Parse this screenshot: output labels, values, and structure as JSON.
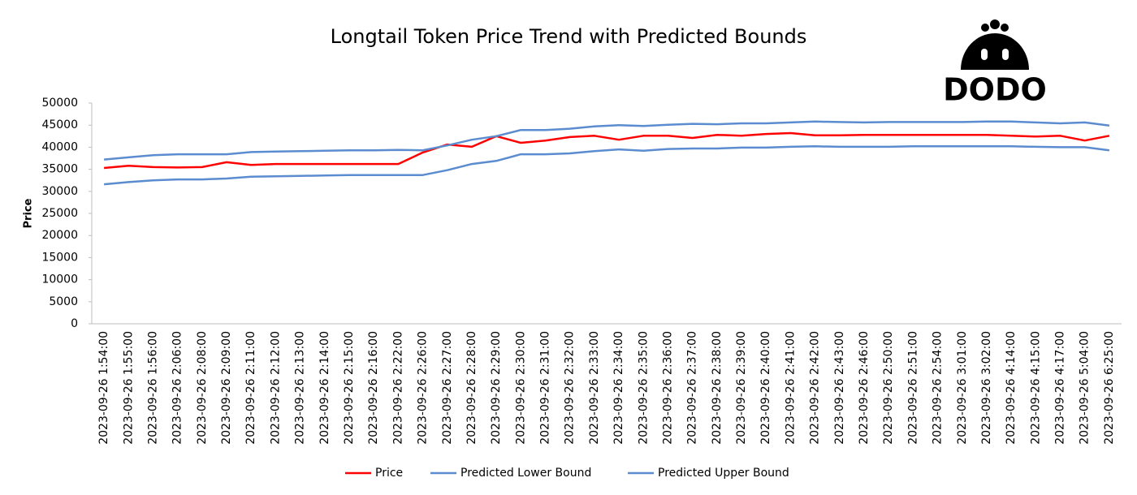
{
  "chart_data": {
    "type": "line",
    "title": "Longtail Token Price Trend with Predicted Bounds",
    "logo": "DODO",
    "y_label": "Price",
    "categories": [
      "2023-09-26 1:54:00",
      "2023-09-26 1:55:00",
      "2023-09-26 1:56:00",
      "2023-09-26 2:06:00",
      "2023-09-26 2:08:00",
      "2023-09-26 2:09:00",
      "2023-09-26 2:11:00",
      "2023-09-26 2:12:00",
      "2023-09-26 2:13:00",
      "2023-09-26 2:14:00",
      "2023-09-26 2:15:00",
      "2023-09-26 2:16:00",
      "2023-09-26 2:22:00",
      "2023-09-26 2:26:00",
      "2023-09-26 2:27:00",
      "2023-09-26 2:28:00",
      "2023-09-26 2:29:00",
      "2023-09-26 2:30:00",
      "2023-09-26 2:31:00",
      "2023-09-26 2:32:00",
      "2023-09-26 2:33:00",
      "2023-09-26 2:34:00",
      "2023-09-26 2:35:00",
      "2023-09-26 2:36:00",
      "2023-09-26 2:37:00",
      "2023-09-26 2:38:00",
      "2023-09-26 2:39:00",
      "2023-09-26 2:40:00",
      "2023-09-26 2:41:00",
      "2023-09-26 2:42:00",
      "2023-09-26 2:43:00",
      "2023-09-26 2:46:00",
      "2023-09-26 2:50:00",
      "2023-09-26 2:51:00",
      "2023-09-26 2:54:00",
      "2023-09-26 3:01:00",
      "2023-09-26 3:02:00",
      "2023-09-26 4:14:00",
      "2023-09-26 4:15:00",
      "2023-09-26 4:17:00",
      "2023-09-26 5:04:00",
      "2023-09-26 6:25:00"
    ],
    "series": [
      {
        "name": "Price",
        "color": "#ff0000",
        "values": [
          35300,
          35800,
          35500,
          35400,
          35500,
          36600,
          36000,
          36200,
          36200,
          36200,
          36200,
          36200,
          36200,
          38800,
          40600,
          40100,
          42500,
          41000,
          41500,
          42300,
          42600,
          41700,
          42600,
          42600,
          42100,
          42800,
          42600,
          43000,
          43200,
          42700,
          42700,
          42800,
          42800,
          42800,
          42800,
          42800,
          42800,
          42600,
          42400,
          42600,
          41500,
          42600
        ]
      },
      {
        "name": "Predicted Lower Bound",
        "color": "#5b8ccf",
        "values": [
          31600,
          32100,
          32500,
          32700,
          32700,
          32900,
          33300,
          33400,
          33500,
          33600,
          33700,
          33700,
          33700,
          33700,
          34800,
          36200,
          36900,
          38400,
          38400,
          38600,
          39100,
          39500,
          39200,
          39600,
          39700,
          39700,
          39900,
          39900,
          40100,
          40200,
          40100,
          40100,
          40100,
          40200,
          40200,
          40200,
          40200,
          40200,
          40100,
          40000,
          40000,
          39300
        ]
      },
      {
        "name": "Predicted Upper Bound",
        "color": "#5b8ccf",
        "values": [
          37200,
          37700,
          38200,
          38400,
          38400,
          38400,
          38900,
          39000,
          39100,
          39200,
          39300,
          39300,
          39400,
          39300,
          40400,
          41700,
          42500,
          43900,
          43900,
          44200,
          44700,
          45000,
          44800,
          45100,
          45300,
          45200,
          45400,
          45400,
          45600,
          45800,
          45700,
          45600,
          45700,
          45700,
          45700,
          45700,
          45800,
          45800,
          45600,
          45400,
          45600,
          44900
        ]
      }
    ],
    "ylim": [
      0,
      50000
    ],
    "yticks": [
      0,
      5000,
      10000,
      15000,
      20000,
      25000,
      30000,
      35000,
      40000,
      45000,
      50000
    ],
    "grid": false,
    "legend": "bottom"
  }
}
